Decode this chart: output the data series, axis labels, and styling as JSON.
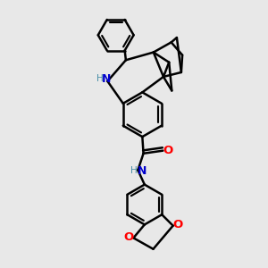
{
  "bg_color": "#e8e8e8",
  "bond_color": "#000000",
  "N_color": "#0000cd",
  "O_color": "#ff0000",
  "H_color": "#4a8fa8",
  "bond_width": 1.8,
  "font_size": 8.5,
  "fig_size": [
    3.0,
    3.0
  ],
  "dpi": 100,
  "xlim": [
    -0.3,
    1.7
  ],
  "ylim": [
    -2.8,
    2.0
  ]
}
